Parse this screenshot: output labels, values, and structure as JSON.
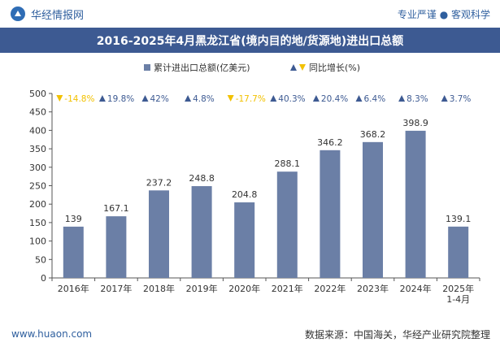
{
  "header": {
    "brand": "华经情报网",
    "tagline": "专业严谨 ● 客观科学"
  },
  "chart_data": {
    "type": "bar",
    "title": "2016-2025年4月黑龙江省(境内目的地/货源地)进出口总额",
    "categories": [
      "2016年",
      "2017年",
      "2018年",
      "2019年",
      "2020年",
      "2021年",
      "2022年",
      "2023年",
      "2024年",
      "2025年\n1-4月"
    ],
    "series": [
      {
        "name": "累计进出口总额(亿美元)",
        "values": [
          139,
          167.1,
          237.2,
          248.8,
          204.8,
          288.1,
          346.2,
          368.2,
          398.9,
          139.1
        ],
        "color": "#6b7fa6"
      }
    ],
    "growth": {
      "name": "同比增长(%)",
      "values": [
        -14.8,
        19.8,
        42,
        4.8,
        -17.7,
        40.3,
        20.4,
        6.4,
        8.3,
        3.7
      ],
      "labels": [
        "-14.8%",
        "19.8%",
        "42%",
        "4.8%",
        "-17.7%",
        "40.3%",
        "20.4%",
        "6.4%",
        "8.3%",
        "3.7%"
      ],
      "up_color": "#3d5a92",
      "down_color": "#f2c100"
    },
    "ylim": [
      0,
      500
    ],
    "yticks": [
      0,
      50,
      100,
      150,
      200,
      250,
      300,
      350,
      400,
      450,
      500
    ],
    "grid": false,
    "legend_position": "top-center"
  },
  "footer": {
    "site": "www.huaon.com",
    "source": "数据来源：中国海关，华经产业研究院整理"
  }
}
